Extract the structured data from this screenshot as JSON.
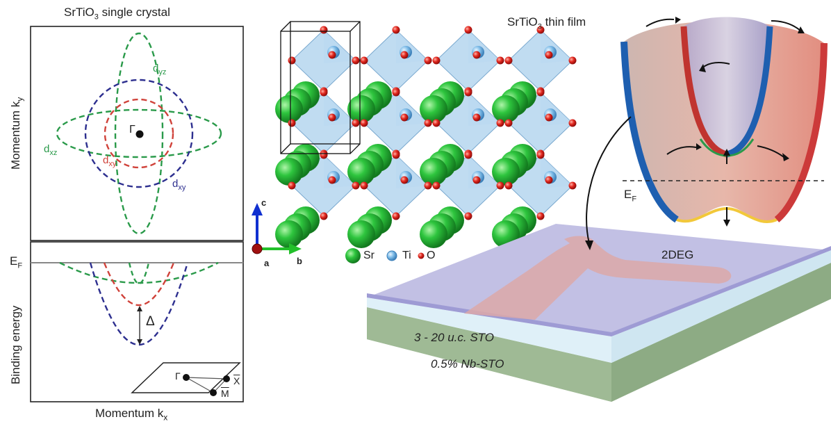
{
  "left_panel": {
    "title": "SrTiO",
    "title_sub": "3",
    "title_rest": " single crystal",
    "ylabel_top": "Momentum k",
    "ylabel_top_sub": "y",
    "ylabel_bottom": "Binding energy",
    "xlabel": "Momentum k",
    "xlabel_sub": "x",
    "gamma": "Γ",
    "fermi": "E",
    "fermi_sub": "F",
    "delta": "Δ",
    "orbitals": [
      {
        "name": "d",
        "sub": "yz",
        "color": "#2a9a4a"
      },
      {
        "name": "d",
        "sub": "xz",
        "color": "#2a9a4a"
      },
      {
        "name": "d",
        "sub": "xy",
        "color": "#d0423a"
      },
      {
        "name": "d",
        "sub": "xy",
        "color": "#2d2f8f"
      }
    ],
    "bz_points": {
      "gamma": "Γ",
      "x": "X",
      "m": "M"
    }
  },
  "crystal": {
    "axes": {
      "c": "c",
      "a": "a",
      "b": "b"
    },
    "legend": [
      {
        "symbol": "sr-atom",
        "label": "Sr",
        "color": "#22b33a"
      },
      {
        "symbol": "ti-atom",
        "label": "Ti",
        "color": "#6aaee0"
      },
      {
        "symbol": "o-atom",
        "label": "O",
        "color": "#d8201c"
      }
    ]
  },
  "thin_film": {
    "title": "SrTiO",
    "title_sub": "3",
    "title_rest": " thin film",
    "fermi": "E",
    "fermi_sub": "F",
    "label_2deg": "2DEG",
    "layer_top": "3 - 20 u.c. STO",
    "layer_bottom": "0.5% Nb-STO"
  },
  "colors": {
    "green": "#2a9a4a",
    "red": "#d0423a",
    "blue": "#2d2f8f",
    "sr": "#22b33a",
    "ti": "#6aaee0",
    "o": "#d8201c"
  }
}
